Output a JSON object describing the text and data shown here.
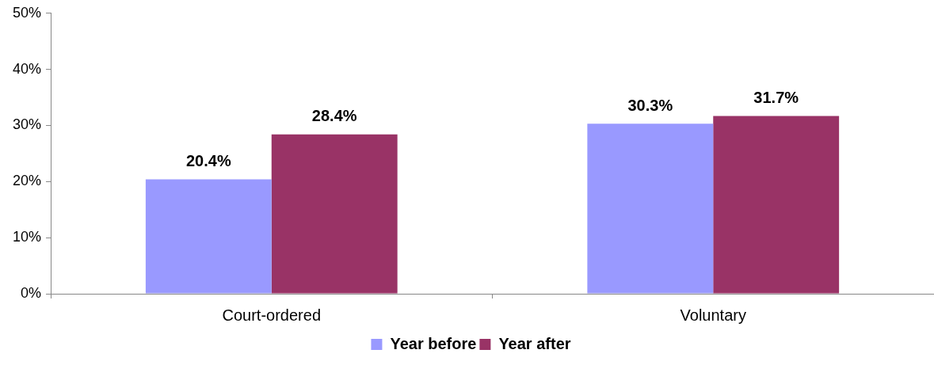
{
  "chart_data": {
    "type": "bar",
    "categories": [
      "Court-ordered",
      "Voluntary"
    ],
    "series": [
      {
        "name": "Year before",
        "color": "#9999ff",
        "values": [
          20.4,
          30.3
        ],
        "value_labels": [
          "20.4%",
          "30.3%"
        ]
      },
      {
        "name": "Year after",
        "color": "#993366",
        "values": [
          28.4,
          31.7
        ],
        "value_labels": [
          "28.4%",
          "31.7%"
        ]
      }
    ],
    "ylim": [
      0,
      50
    ],
    "yticks": [
      {
        "value": 0,
        "label": "0%"
      },
      {
        "value": 10,
        "label": "10%"
      },
      {
        "value": 20,
        "label": "20%"
      },
      {
        "value": 30,
        "label": "30%"
      },
      {
        "value": 40,
        "label": "40%"
      },
      {
        "value": 50,
        "label": "50%"
      }
    ],
    "grid": false,
    "legend": "bottom"
  }
}
